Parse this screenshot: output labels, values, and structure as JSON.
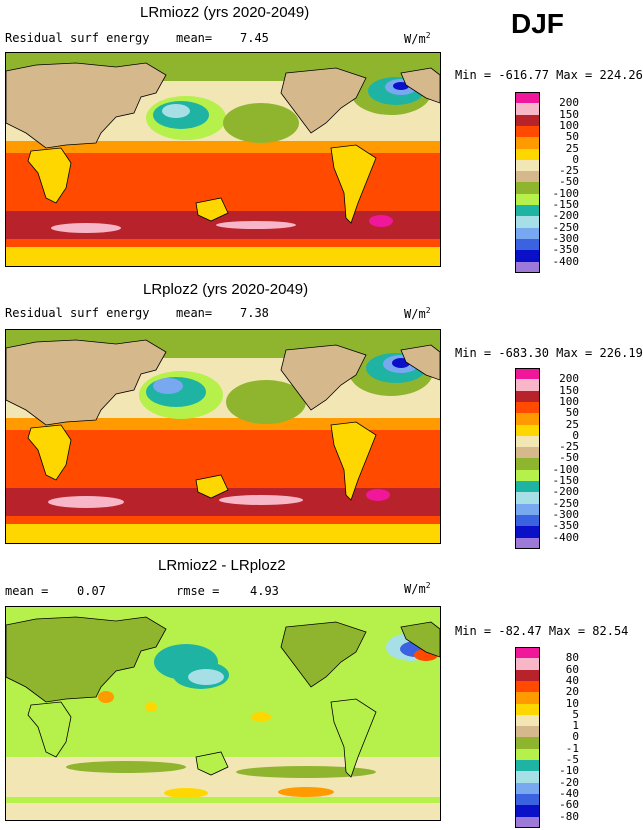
{
  "season": "DJF",
  "panels": [
    {
      "title": "LRmioz2 (yrs 2020-2049)",
      "variable": "Residual surf energy",
      "stat_label": "mean=",
      "stat_value": "7.45",
      "unit": "W/m",
      "unit_exp": "2",
      "minmax": "Min = -616.77 Max = 224.26",
      "levels": [
        "200",
        "150",
        "100",
        "50",
        "25",
        "0",
        "-25",
        "-50",
        "-100",
        "-150",
        "-200",
        "-250",
        "-300",
        "-350",
        "-400"
      ],
      "colors": [
        "#f0179a",
        "#f7b7c8",
        "#b8222b",
        "#ff4a00",
        "#ff9a00",
        "#ffd700",
        "#f2e6b5",
        "#d6b88d",
        "#8fb52f",
        "#b6f04a",
        "#1fb3a3",
        "#a6dfe6",
        "#78a8f0",
        "#3b63e0",
        "#0a10c8",
        "#9d7ad8"
      ],
      "map": "full"
    },
    {
      "title": "LRploz2 (yrs 2020-2049)",
      "variable": "Residual surf energy",
      "stat_label": "mean=",
      "stat_value": "7.38",
      "unit": "W/m",
      "unit_exp": "2",
      "minmax": "Min = -683.30 Max = 226.19",
      "levels": [
        "200",
        "150",
        "100",
        "50",
        "25",
        "0",
        "-25",
        "-50",
        "-100",
        "-150",
        "-200",
        "-250",
        "-300",
        "-350",
        "-400"
      ],
      "colors": [
        "#f0179a",
        "#f7b7c8",
        "#b8222b",
        "#ff4a00",
        "#ff9a00",
        "#ffd700",
        "#f2e6b5",
        "#d6b88d",
        "#8fb52f",
        "#b6f04a",
        "#1fb3a3",
        "#a6dfe6",
        "#78a8f0",
        "#3b63e0",
        "#0a10c8",
        "#9d7ad8"
      ],
      "map": "full"
    },
    {
      "title": "LRmioz2 - LRploz2",
      "mean_label": "mean =",
      "mean_value": "0.07",
      "rmse_label": "rmse =",
      "rmse_value": "4.93",
      "unit": "W/m",
      "unit_exp": "2",
      "minmax": "Min = -82.47 Max =  82.54",
      "levels": [
        "80",
        "60",
        "40",
        "20",
        "10",
        "5",
        "1",
        "0",
        "-1",
        "-5",
        "-10",
        "-20",
        "-40",
        "-60",
        "-80"
      ],
      "colors": [
        "#f0179a",
        "#f7b7c8",
        "#b8222b",
        "#ff4a00",
        "#ff9a00",
        "#ffd700",
        "#f2e6b5",
        "#d6b88d",
        "#8fb52f",
        "#b6f04a",
        "#1fb3a3",
        "#a6dfe6",
        "#78a8f0",
        "#3b63e0",
        "#0a10c8",
        "#9d7ad8"
      ],
      "map": "diff"
    }
  ],
  "chart_data": [
    {
      "type": "heatmap",
      "title": "LRmioz2 (yrs 2020-2049)",
      "subtitle": "Residual surf energy",
      "mean": 7.45,
      "min": -616.77,
      "max": 224.26,
      "units": "W/m2",
      "contour_levels": [
        200,
        150,
        100,
        50,
        25,
        0,
        -25,
        -50,
        -100,
        -150,
        -200,
        -250,
        -300,
        -350,
        -400
      ]
    },
    {
      "type": "heatmap",
      "title": "LRploz2 (yrs 2020-2049)",
      "subtitle": "Residual surf energy",
      "mean": 7.38,
      "min": -683.3,
      "max": 226.19,
      "units": "W/m2",
      "contour_levels": [
        200,
        150,
        100,
        50,
        25,
        0,
        -25,
        -50,
        -100,
        -150,
        -200,
        -250,
        -300,
        -350,
        -400
      ]
    },
    {
      "type": "heatmap",
      "title": "LRmioz2 - LRploz2",
      "mean": 0.07,
      "rmse": 4.93,
      "min": -82.47,
      "max": 82.54,
      "units": "W/m2",
      "contour_levels": [
        80,
        60,
        40,
        20,
        10,
        5,
        1,
        0,
        -1,
        -5,
        -10,
        -20,
        -40,
        -60,
        -80
      ]
    }
  ]
}
